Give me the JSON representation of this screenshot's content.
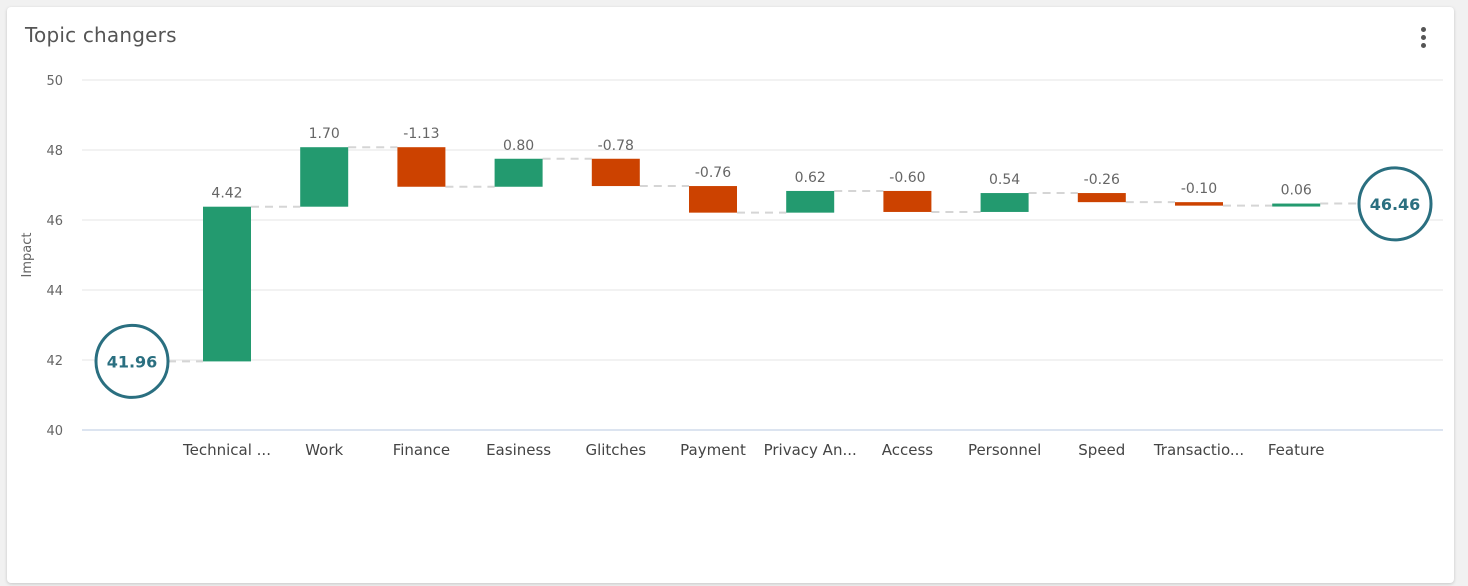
{
  "card": {
    "title": "Topic changers",
    "menu_icon": "more-vert-icon"
  },
  "chart_data": {
    "type": "waterfall",
    "ylabel": "Impact",
    "ylim": [
      40,
      50
    ],
    "yticks": [
      "40",
      "42",
      "44",
      "46",
      "48",
      "50"
    ],
    "grid": true,
    "start": {
      "value": 41.96,
      "label": "41.96"
    },
    "end": {
      "value": 46.46,
      "label": "46.46"
    },
    "categories": [
      "Technical ...",
      "Work",
      "Finance",
      "Easiness",
      "Glitches",
      "Payment",
      "Privacy An...",
      "Access",
      "Personnel",
      "Speed",
      "Transactio...",
      "Feature"
    ],
    "values": [
      4.42,
      1.7,
      -1.13,
      0.8,
      -0.78,
      -0.76,
      0.62,
      -0.6,
      0.54,
      -0.26,
      -0.1,
      0.06
    ],
    "value_labels": [
      "4.42",
      "1.70",
      "-1.13",
      "0.80",
      "-0.78",
      "-0.76",
      "0.62",
      "-0.60",
      "0.54",
      "-0.26",
      "-0.10",
      "0.06"
    ],
    "colors": {
      "positive": "#239a6f",
      "negative": "#cc4200",
      "endpoint": "#2a6f80",
      "grid": "#e6e6e6",
      "axis": "#c8d3e6",
      "connector": "#d5d5d5"
    }
  }
}
